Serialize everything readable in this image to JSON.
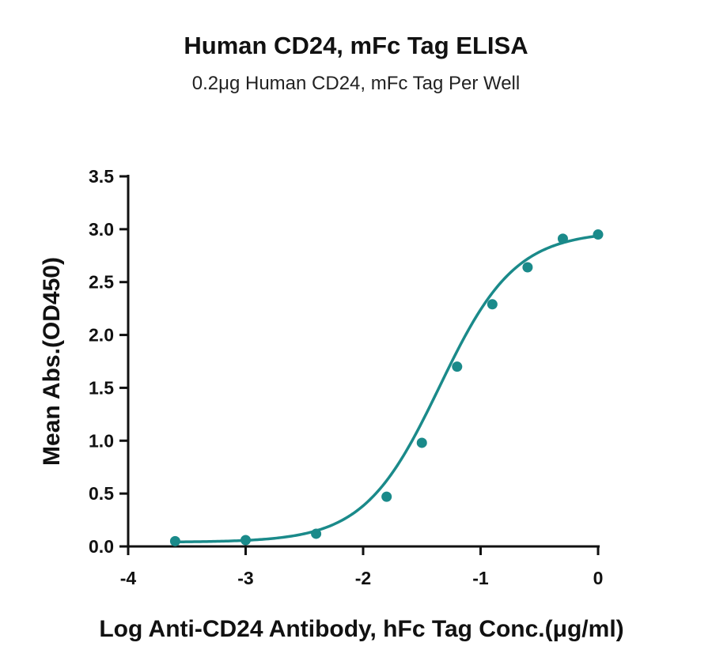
{
  "chart_data": {
    "type": "scatter",
    "title": "Human CD24, mFc Tag ELISA",
    "subtitle": "0.2μg Human CD24, mFc Tag Per Well",
    "xlabel": "Log Anti-CD24 Antibody, hFc Tag Conc.(μg/ml)",
    "ylabel": "Mean Abs.(OD450)",
    "xlim": [
      -4,
      0
    ],
    "ylim": [
      0,
      3.5
    ],
    "xticks": [
      "-4",
      "-3",
      "-2",
      "-1",
      "0"
    ],
    "yticks": [
      "0.0",
      "0.5",
      "1.0",
      "1.5",
      "2.0",
      "2.5",
      "3.0",
      "3.5"
    ],
    "grid": false,
    "fit_curve": "sigmoidal",
    "color": "#1a8a8a",
    "series": [
      {
        "x": [
          -3.6,
          -3.0,
          -2.4,
          -1.8,
          -1.5,
          -1.2,
          -0.9,
          -0.6,
          -0.3,
          0.0
        ],
        "y": [
          0.05,
          0.06,
          0.12,
          0.47,
          0.98,
          1.7,
          2.29,
          2.64,
          2.91,
          2.95
        ]
      }
    ]
  }
}
